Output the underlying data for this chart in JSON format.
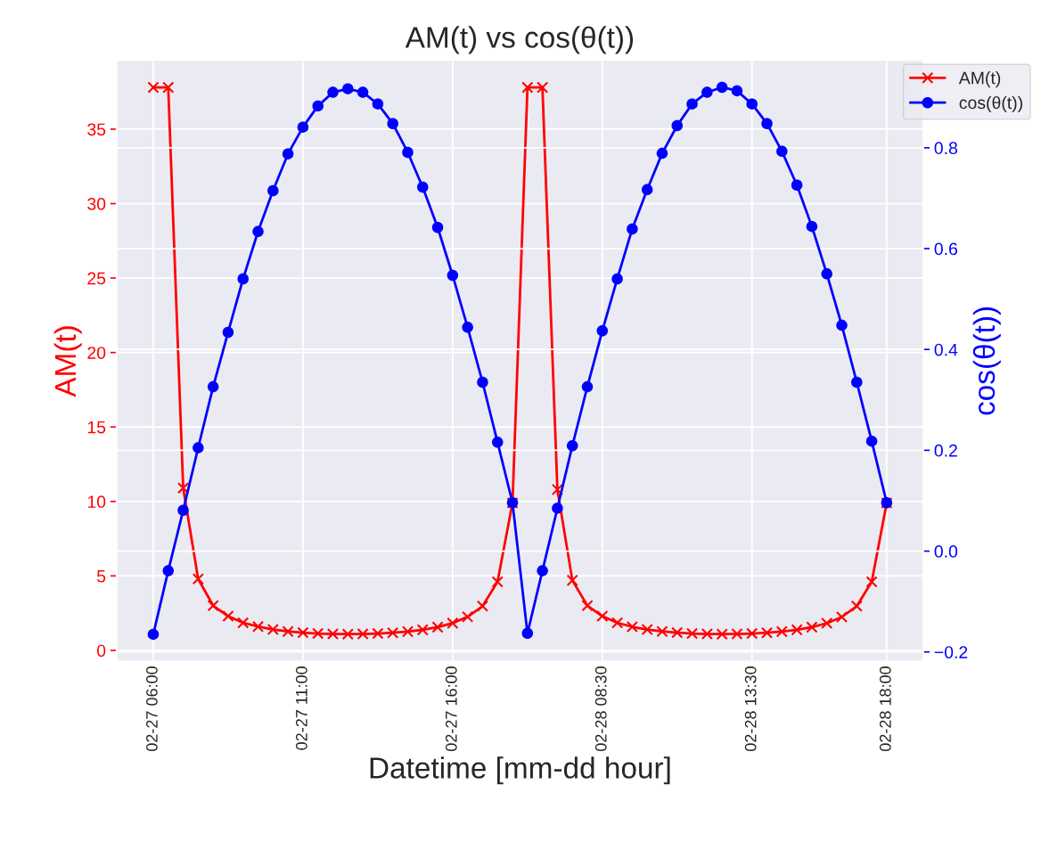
{
  "chart_data": {
    "type": "line",
    "title": "AM(t) vs cos(θ(t))",
    "xlabel": "Datetime [mm-dd hour]",
    "ylabel": "AM(t)",
    "y2label": "cos(θ(t))",
    "categories": [
      "02-27 06:00",
      null,
      null,
      null,
      null,
      null,
      null,
      null,
      null,
      null,
      "02-27 11:00",
      null,
      null,
      null,
      null,
      null,
      null,
      null,
      null,
      null,
      "02-27 16:00",
      null,
      null,
      null,
      null,
      null,
      null,
      null,
      null,
      null,
      "02-28 08:30",
      null,
      null,
      null,
      null,
      null,
      null,
      null,
      null,
      null,
      "02-28 13:30",
      null,
      null,
      null,
      null,
      null,
      null,
      null,
      null,
      "02-28 18:00"
    ],
    "series": [
      {
        "name": "AM(t)",
        "color": "#ff0000",
        "marker": "cross",
        "values": [
          37.8,
          37.8,
          10.9,
          4.8,
          3.0,
          2.3,
          1.85,
          1.6,
          1.4,
          1.27,
          1.19,
          1.13,
          1.1,
          1.09,
          1.1,
          1.13,
          1.18,
          1.26,
          1.38,
          1.56,
          1.83,
          2.25,
          2.97,
          4.6,
          9.9,
          37.8,
          37.8,
          10.8,
          4.7,
          3.0,
          2.3,
          1.85,
          1.58,
          1.4,
          1.27,
          1.19,
          1.13,
          1.1,
          1.09,
          1.1,
          1.13,
          1.18,
          1.26,
          1.38,
          1.56,
          1.82,
          2.24,
          2.97,
          4.6,
          9.9
        ]
      },
      {
        "name": "cos(θ(t))",
        "color": "#0000ff",
        "marker": "circle",
        "axis": "y2",
        "values": [
          -0.165,
          -0.039,
          0.081,
          0.205,
          0.326,
          0.434,
          0.54,
          0.634,
          0.715,
          0.788,
          0.841,
          0.883,
          0.91,
          0.917,
          0.91,
          0.887,
          0.848,
          0.791,
          0.722,
          0.642,
          0.547,
          0.444,
          0.335,
          0.216,
          0.096,
          -0.163,
          -0.039,
          0.085,
          0.209,
          0.326,
          0.437,
          0.54,
          0.639,
          0.717,
          0.789,
          0.844,
          0.887,
          0.91,
          0.92,
          0.913,
          0.887,
          0.848,
          0.793,
          0.726,
          0.644,
          0.55,
          0.448,
          0.335,
          0.218,
          0.096
        ]
      }
    ],
    "ylim": [
      -0.75,
      39.64
    ],
    "yticks": [
      0,
      5,
      10,
      15,
      20,
      25,
      30,
      35
    ],
    "y2lim": [
      -0.219,
      0.974
    ],
    "y2ticks": [
      {
        "value": -0.2,
        "label": "−0.2"
      },
      {
        "value": 0,
        "label": "0.0"
      },
      0.2,
      0.4,
      0.6,
      0.8
    ],
    "grid": true,
    "legend": "top right",
    "line_style": "solid"
  }
}
